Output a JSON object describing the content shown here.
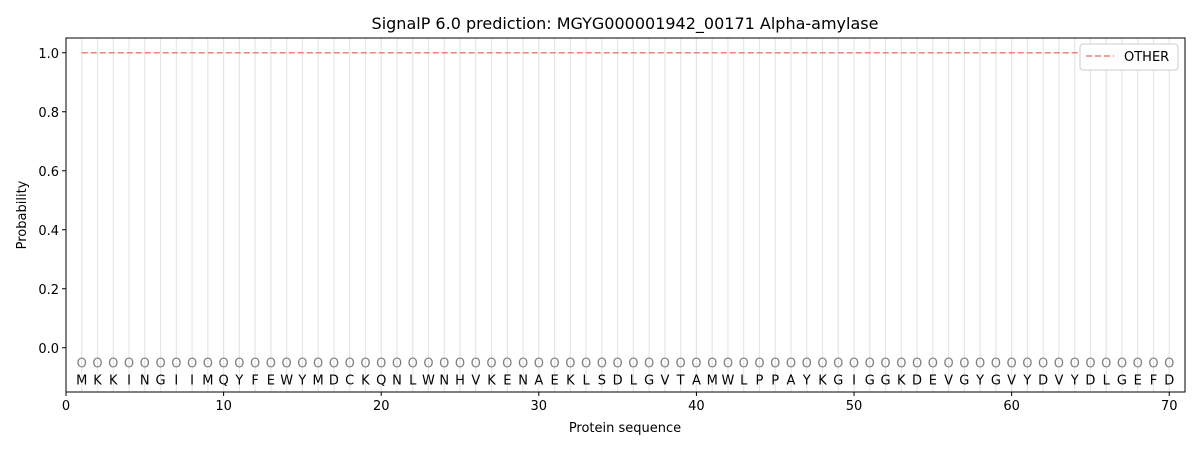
{
  "chart_data": {
    "type": "line",
    "title": "SignalP 6.0 prediction: MGYG000001942_00171 Alpha-amylase",
    "xlabel": "Protein sequence",
    "ylabel": "Probability",
    "xlim": [
      0,
      71
    ],
    "ylim": [
      -0.15,
      1.05
    ],
    "xticks": [
      0,
      10,
      20,
      30,
      40,
      50,
      60,
      70
    ],
    "yticks": [
      0.0,
      0.2,
      0.4,
      0.6,
      0.8,
      1.0
    ],
    "ytick_labels": [
      "0.0",
      "0.2",
      "0.4",
      "0.6",
      "0.8",
      "1.0"
    ],
    "grid": "vertical lines at each residue",
    "legend_position": "top-right",
    "sequence": "MKKINGIIMQYFEWYMDCKQNLWNHVKENAEKLSDLGVTAMWLPPAYKGIGGKDEVGYGVYDVYDLGEFD",
    "predicted_labels": "OOOOOOOOOOOOOOOOOOOOOOOOOOOOOOOOOOOOOOOOOOOOOOOOOOOOOOOOOOOOOOOOOOOOOO",
    "series": [
      {
        "name": "OTHER",
        "color": "#f07f7f",
        "style": "dashed",
        "x_start": 1,
        "x_end": 70,
        "value": 1.0
      }
    ]
  }
}
